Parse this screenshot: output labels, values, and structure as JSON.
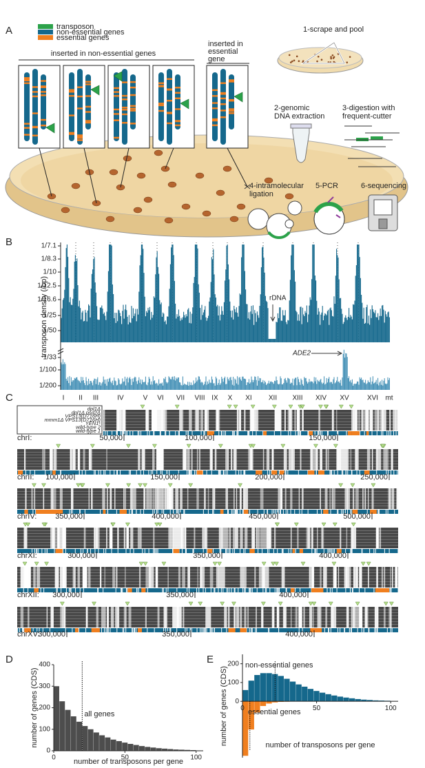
{
  "panel_labels": [
    "A",
    "B",
    "C",
    "D",
    "E"
  ],
  "panel_a": {
    "legend": [
      "transposon",
      "non-essential genes",
      "essential genes"
    ],
    "group_labels": [
      [
        "inserted in non-essential genes"
      ],
      [
        "inserted in",
        "essential",
        "gene"
      ]
    ],
    "steps": [
      [
        "1-scrape and pool"
      ],
      [
        "2-genomic",
        "DNA extraction"
      ],
      [
        "3-digestion with",
        "frequent-cutter"
      ],
      [
        "4-intramolecular",
        "ligation"
      ],
      [
        "5-PCR"
      ],
      [
        "6-sequencing"
      ]
    ]
  },
  "panel_b": {
    "y_label": "transposon density (/bp)",
    "upper_ticks": [
      "1/7.1",
      "1/8.3",
      "1/10",
      "1/12.5",
      "1/16.6",
      "1/25",
      "1/50"
    ],
    "lower_ticks": [
      "1/33",
      "1/100",
      "1/200"
    ],
    "annotations": [
      "rDNA",
      "ADE2"
    ],
    "chromosomes": [
      "I",
      "II",
      "III",
      "IV",
      "V",
      "VI",
      "VII",
      "VIII",
      "IX",
      "X",
      "XI",
      "XII",
      "XIII",
      "XIV",
      "XV",
      "XVI",
      "mt"
    ]
  },
  "panel_c": {
    "strains": [
      "dpl1Δ",
      "dpl1Δ psd2Δ",
      "VPS13(D716H)",
      "mmm1Δ VPS13(D716H)",
      "YEN1ᶜ",
      "wild-type 2",
      "wild-type 1"
    ],
    "tracks": [
      {
        "name": "chrI:",
        "ticks": [
          "50,000",
          "100,000",
          "150,000"
        ]
      },
      {
        "name": "chrII:",
        "ticks": [
          "100,000",
          "150,000",
          "200,000",
          "250,000"
        ]
      },
      {
        "name": "chrIV:",
        "ticks": [
          "350,000",
          "400,000",
          "450,000",
          "500,000"
        ]
      },
      {
        "name": "chrXI:",
        "ticks": [
          "300,000",
          "350,000",
          "400,000"
        ]
      },
      {
        "name": "chrXII:",
        "ticks": [
          "300,000",
          "350,000",
          "400,000"
        ]
      },
      {
        "name": "chrXV:",
        "ticks": [
          "300,000",
          "350,000",
          "400,000"
        ]
      }
    ]
  },
  "chart_data": [
    {
      "type": "histogram",
      "bins": [
        0,
        4,
        8,
        12,
        16,
        20,
        24,
        28,
        32,
        36,
        40,
        44,
        48,
        52,
        56,
        60,
        64,
        68,
        72,
        76,
        80,
        84,
        88,
        92,
        96,
        100
      ],
      "values": [
        300,
        230,
        190,
        160,
        135,
        115,
        100,
        85,
        72,
        62,
        52,
        45,
        38,
        32,
        27,
        22,
        18,
        15,
        12,
        10,
        8,
        6,
        5,
        4,
        3
      ],
      "color": "#4d4d4d",
      "xlim": [
        0,
        105
      ],
      "ylim": [
        0,
        400
      ],
      "xticks": [
        0,
        50,
        100
      ],
      "yticks": [
        0,
        100,
        200,
        300,
        400
      ],
      "xlabel": "number of transposons per gene",
      "ylabel": "number of genes (CDS)",
      "annotation": {
        "text": "all genes",
        "x": 20
      }
    },
    {
      "type": "histogram",
      "bins": [
        0,
        4,
        8,
        12,
        16,
        20,
        24,
        28,
        32,
        36,
        40,
        44,
        48,
        52,
        56,
        60,
        64,
        68,
        72,
        76,
        80,
        84,
        88,
        92,
        96,
        100
      ],
      "series": [
        {
          "name": "non-essential genes",
          "color": "#15688c",
          "direction": "up",
          "marker_x": 22,
          "values": [
            60,
            110,
            140,
            150,
            150,
            145,
            135,
            120,
            105,
            90,
            78,
            66,
            55,
            46,
            38,
            31,
            25,
            20,
            16,
            12,
            9,
            7,
            5,
            4,
            3
          ]
        },
        {
          "name": "essential genes",
          "color": "#f07f1f",
          "direction": "down",
          "marker_x": 5,
          "values": [
            290,
            150,
            60,
            25,
            12,
            6,
            3,
            2,
            1,
            1,
            0,
            0,
            0,
            0,
            0,
            0,
            0,
            0,
            0,
            0,
            0,
            0,
            0,
            0,
            0
          ]
        }
      ],
      "xlim": [
        0,
        105
      ],
      "ylim": [
        -300,
        250
      ],
      "xticks": [
        0,
        50,
        100
      ],
      "yticks": [
        0,
        100,
        200
      ],
      "xlabel": "number of transposons per gene",
      "ylabel": "number of genes (CDS)"
    }
  ]
}
